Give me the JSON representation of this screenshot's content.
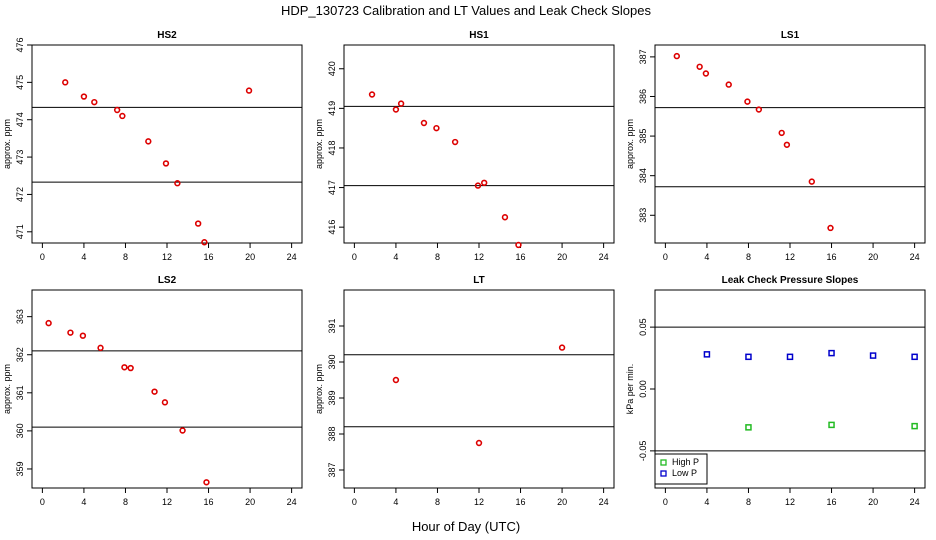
{
  "title": "HDP_130723  Calibration and LT Values and Leak Check Slopes",
  "xlabel": "Hour of Day (UTC)",
  "chart_data": [
    {
      "type": "scatter",
      "title": "HS2",
      "ylabel": "approx. ppm",
      "xlim": [
        -1,
        25
      ],
      "ylim": [
        470.7,
        476.0
      ],
      "xticks": [
        "0",
        "4",
        "8",
        "12",
        "16",
        "20",
        "24"
      ],
      "xtick_values": [
        0,
        4,
        8,
        12,
        16,
        20,
        24
      ],
      "yticks": [
        "471",
        "472",
        "473",
        "474",
        "475",
        "476"
      ],
      "ytick_values": [
        471,
        472,
        473,
        474,
        475,
        476
      ],
      "hlines": [
        474.33,
        472.33
      ],
      "color": "#dd0000",
      "marker": "circle",
      "x": [
        2.2,
        4.0,
        5.0,
        7.2,
        7.7,
        10.2,
        11.9,
        13.0,
        15.0,
        15.6,
        19.9
      ],
      "y": [
        475.0,
        474.62,
        474.47,
        474.26,
        474.1,
        473.42,
        472.83,
        472.3,
        471.22,
        470.72,
        474.78
      ]
    },
    {
      "type": "scatter",
      "title": "HS1",
      "ylabel": "approx. ppm",
      "xlim": [
        -1,
        25
      ],
      "ylim": [
        415.6,
        420.6
      ],
      "xticks": [
        "0",
        "4",
        "8",
        "12",
        "16",
        "20",
        "24"
      ],
      "xtick_values": [
        0,
        4,
        8,
        12,
        16,
        20,
        24
      ],
      "yticks": [
        "416",
        "417",
        "418",
        "419",
        "420"
      ],
      "ytick_values": [
        416,
        417,
        418,
        419,
        420
      ],
      "hlines": [
        419.05,
        417.05
      ],
      "color": "#dd0000",
      "marker": "circle",
      "x": [
        1.7,
        4.0,
        4.5,
        6.7,
        7.9,
        9.7,
        11.9,
        12.5,
        14.5,
        15.8
      ],
      "y": [
        419.35,
        418.97,
        419.12,
        418.63,
        418.5,
        418.15,
        417.05,
        417.12,
        416.25,
        415.55
      ]
    },
    {
      "type": "scatter",
      "title": "LS1",
      "ylabel": "approx. ppm",
      "xlim": [
        -1,
        25
      ],
      "ylim": [
        382.3,
        387.3
      ],
      "xticks": [
        "0",
        "4",
        "8",
        "12",
        "16",
        "20",
        "24"
      ],
      "xtick_values": [
        0,
        4,
        8,
        12,
        16,
        20,
        24
      ],
      "yticks": [
        "383",
        "384",
        "385",
        "386",
        "387"
      ],
      "ytick_values": [
        383,
        384,
        385,
        386,
        387
      ],
      "hlines": [
        385.72,
        383.72
      ],
      "color": "#dd0000",
      "marker": "circle",
      "x": [
        1.1,
        3.3,
        3.9,
        6.1,
        7.9,
        9.0,
        11.2,
        11.7,
        14.1,
        15.9
      ],
      "y": [
        387.02,
        386.75,
        386.58,
        386.3,
        385.87,
        385.67,
        385.08,
        384.78,
        383.85,
        382.68
      ]
    },
    {
      "type": "scatter",
      "title": "LS2",
      "ylabel": "approx. ppm",
      "xlim": [
        -1,
        25
      ],
      "ylim": [
        358.5,
        363.7
      ],
      "xticks": [
        "0",
        "4",
        "8",
        "12",
        "16",
        "20",
        "24"
      ],
      "xtick_values": [
        0,
        4,
        8,
        12,
        16,
        20,
        24
      ],
      "yticks": [
        "359",
        "360",
        "361",
        "362",
        "363"
      ],
      "ytick_values": [
        359,
        360,
        361,
        362,
        363
      ],
      "hlines": [
        362.1,
        360.1
      ],
      "color": "#dd0000",
      "marker": "circle",
      "x": [
        0.6,
        2.7,
        3.9,
        5.6,
        7.9,
        8.5,
        10.8,
        11.8,
        13.5,
        15.8
      ],
      "y": [
        362.83,
        362.58,
        362.5,
        362.18,
        361.67,
        361.65,
        361.03,
        360.75,
        360.01,
        358.65
      ]
    },
    {
      "type": "scatter",
      "title": "LT",
      "ylabel": "approx. ppm",
      "xlim": [
        -1,
        25
      ],
      "ylim": [
        386.5,
        392.0
      ],
      "xticks": [
        "0",
        "4",
        "8",
        "12",
        "16",
        "20",
        "24"
      ],
      "xtick_values": [
        0,
        4,
        8,
        12,
        16,
        20,
        24
      ],
      "yticks": [
        "387",
        "388",
        "389",
        "390",
        "391"
      ],
      "ytick_values": [
        387,
        388,
        389,
        390,
        391
      ],
      "hlines": [
        390.2,
        388.2
      ],
      "color": "#dd0000",
      "marker": "circle",
      "x": [
        4.0,
        12.0,
        20.0
      ],
      "y": [
        389.5,
        387.75,
        390.4
      ]
    },
    {
      "type": "scatter",
      "title": "Leak Check Pressure Slopes",
      "ylabel": "kPa per min.",
      "xlim": [
        -1,
        25
      ],
      "ylim": [
        -0.08,
        0.08
      ],
      "xticks": [
        "0",
        "4",
        "8",
        "12",
        "16",
        "20",
        "24"
      ],
      "xtick_values": [
        0,
        4,
        8,
        12,
        16,
        20,
        24
      ],
      "yticks": [
        "-0.05",
        "0.00",
        "0.05"
      ],
      "ytick_values": [
        -0.05,
        0.0,
        0.05
      ],
      "hlines": [
        0.05,
        -0.05
      ],
      "marker": "square",
      "series": [
        {
          "name": "High P",
          "color": "#22bb22",
          "x": [
            8,
            16,
            24
          ],
          "y": [
            -0.031,
            -0.029,
            -0.03
          ]
        },
        {
          "name": "Low P",
          "color": "#0000cc",
          "x": [
            4,
            8,
            12,
            16,
            20,
            24
          ],
          "y": [
            0.028,
            0.026,
            0.026,
            0.029,
            0.027,
            0.026
          ]
        }
      ],
      "legend": "bottom-left"
    }
  ]
}
